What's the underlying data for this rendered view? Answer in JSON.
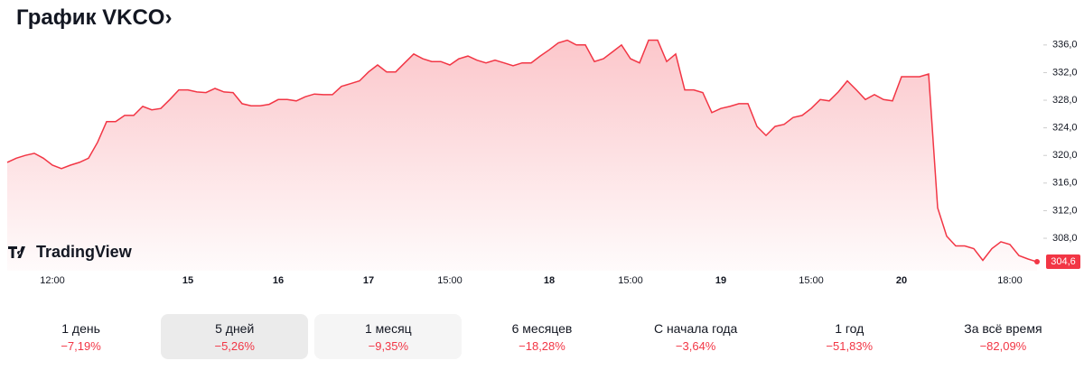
{
  "title": "График VKCO›",
  "watermark": "TradingView",
  "chart_data": {
    "type": "line",
    "categories": [
      null,
      null,
      null,
      null,
      null,
      "12:00",
      null,
      null,
      null,
      null,
      null,
      null,
      null,
      null,
      null,
      null,
      null,
      null,
      null,
      null,
      "15",
      null,
      null,
      null,
      null,
      null,
      null,
      null,
      null,
      null,
      "16",
      null,
      null,
      null,
      null,
      null,
      null,
      null,
      null,
      null,
      "17",
      null,
      null,
      null,
      null,
      null,
      null,
      null,
      null,
      "15:00",
      null,
      null,
      null,
      null,
      null,
      null,
      null,
      null,
      null,
      null,
      "18",
      null,
      null,
      null,
      null,
      null,
      null,
      null,
      null,
      "15:00",
      null,
      null,
      null,
      null,
      null,
      null,
      null,
      null,
      null,
      "19",
      null,
      null,
      null,
      null,
      null,
      null,
      null,
      null,
      null,
      "15:00",
      null,
      null,
      null,
      null,
      null,
      null,
      null,
      null,
      null,
      "20",
      null,
      null,
      null,
      null,
      null,
      null,
      null,
      null,
      null,
      null,
      null,
      "18:00",
      null,
      null,
      null
    ],
    "series": [
      {
        "color": "#f23645",
        "values": [
          319.0,
          319.6,
          320.0,
          320.3,
          319.6,
          318.6,
          318.1,
          318.6,
          319.0,
          319.6,
          321.9,
          324.9,
          324.9,
          325.8,
          325.8,
          327.1,
          326.6,
          326.8,
          328.1,
          329.5,
          329.5,
          329.2,
          329.1,
          329.7,
          329.2,
          329.1,
          327.5,
          327.2,
          327.2,
          327.4,
          328.1,
          328.1,
          327.9,
          328.5,
          328.9,
          328.8,
          328.8,
          330.0,
          330.4,
          330.8,
          332.1,
          333.1,
          332.1,
          332.1,
          333.4,
          334.7,
          334.0,
          333.6,
          333.6,
          333.1,
          334.0,
          334.4,
          333.8,
          333.4,
          333.8,
          333.4,
          333.0,
          333.4,
          333.4,
          334.4,
          335.3,
          336.3,
          336.7,
          336.0,
          336.0,
          333.6,
          334.0,
          335.0,
          336.0,
          334.0,
          333.4,
          336.7,
          336.7,
          333.6,
          334.7,
          329.5,
          329.5,
          329.1,
          326.2,
          326.8,
          327.1,
          327.5,
          327.5,
          324.2,
          322.9,
          324.2,
          324.5,
          325.5,
          325.8,
          326.8,
          328.1,
          327.9,
          329.2,
          330.8,
          329.5,
          328.1,
          328.8,
          328.1,
          327.9,
          331.4,
          331.4,
          331.4,
          331.8,
          312.4,
          308.3,
          306.9,
          306.9,
          306.5,
          304.8,
          306.5,
          307.5,
          307.1,
          305.5,
          305.0,
          304.6
        ]
      }
    ],
    "last_value_label": "304,6",
    "ylim": [
      303.3,
      339.9
    ],
    "yticks": [
      {
        "value": 308,
        "label": "308,0"
      },
      {
        "value": 312,
        "label": "312,0"
      },
      {
        "value": 316,
        "label": "316,0"
      },
      {
        "value": 320,
        "label": "320,0"
      },
      {
        "value": 324,
        "label": "324,0"
      },
      {
        "value": 328,
        "label": "328,0"
      },
      {
        "value": 332,
        "label": "332,0"
      },
      {
        "value": 336,
        "label": "336,0"
      }
    ]
  },
  "tabs": [
    {
      "label": "1 день",
      "change": "−7,19%"
    },
    {
      "label": "5 дней",
      "change": "−5,26%"
    },
    {
      "label": "1 месяц",
      "change": "−9,35%"
    },
    {
      "label": "6 месяцев",
      "change": "−18,28%"
    },
    {
      "label": "С начала года",
      "change": "−3,64%"
    },
    {
      "label": "1 год",
      "change": "−51,83%"
    },
    {
      "label": "За всё время",
      "change": "−82,09%"
    }
  ]
}
